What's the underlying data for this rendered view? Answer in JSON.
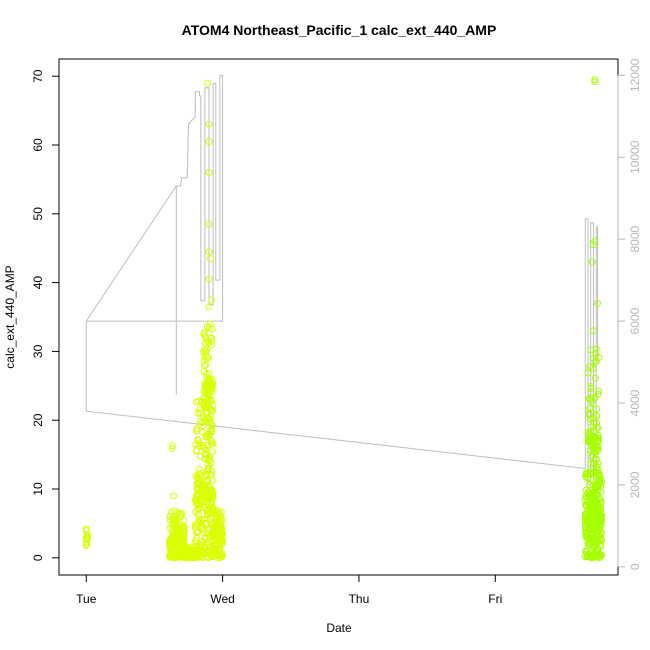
{
  "chart_data": {
    "type": "scatter",
    "title": "ATOM4 Northeast_Pacific_1 calc_ext_440_AMP",
    "xlabel": "Date",
    "ylabel": "calc_ext_440_AMP",
    "x_ticks": [
      "Tue",
      "Wed",
      "Thu",
      "Fri"
    ],
    "x_tick_pos": [
      0,
      1,
      2,
      3
    ],
    "xlim": [
      -0.2,
      3.9
    ],
    "ylim": [
      -2.5,
      72.5
    ],
    "y_ticks": [
      0,
      10,
      20,
      30,
      40,
      50,
      60,
      70
    ],
    "y2lim": [
      -200,
      12400
    ],
    "y2_ticks": [
      0,
      2000,
      4000,
      6000,
      8000,
      10000,
      12000
    ],
    "grid": false,
    "colors": {
      "points": "#d9ff00",
      "points_late": "#a6ff00",
      "line": "#bebebe"
    },
    "series": [
      {
        "role": "points",
        "clusters": [
          {
            "x_range": [
              0.0,
              0.01
            ],
            "n": 10,
            "y_mid": 3.0,
            "y_spread": 1.3
          },
          {
            "x_range": [
              0.61,
              0.72
            ],
            "n": 160,
            "y_mid": 2.5,
            "y_spread": 4.5
          },
          {
            "x_range": [
              0.7,
              0.8
            ],
            "n": 90,
            "y_mid": 0.8,
            "y_spread": 1.0
          },
          {
            "x_range": [
              0.8,
              0.93
            ],
            "n": 260,
            "y_mid": 9.0,
            "y_spread": 14.0
          },
          {
            "x_range": [
              0.86,
              0.93
            ],
            "n": 90,
            "y_mid": 25.0,
            "y_spread": 9.0
          },
          {
            "x_range": [
              0.93,
              1.0
            ],
            "n": 120,
            "y_mid": 3.5,
            "y_spread": 3.5
          },
          {
            "x_range": [
              3.66,
              3.78
            ],
            "n": 300,
            "y_mid": 5.5,
            "y_spread": 7.0
          },
          {
            "x_range": [
              3.68,
              3.76
            ],
            "n": 110,
            "y_mid": 17.0,
            "y_spread": 14.0
          }
        ],
        "highlights": [
          [
            0.0,
            4.2
          ],
          [
            0.0,
            1.8
          ],
          [
            0.63,
            16.3
          ],
          [
            0.63,
            15.9
          ],
          [
            0.64,
            9.0
          ],
          [
            0.89,
            69.0
          ],
          [
            0.9,
            63.0
          ],
          [
            0.9,
            60.5
          ],
          [
            0.9,
            56.0
          ],
          [
            0.9,
            48.5
          ],
          [
            0.9,
            44.5
          ],
          [
            0.91,
            43.5
          ],
          [
            0.9,
            40.5
          ],
          [
            0.92,
            37.5
          ],
          [
            0.9,
            36.5
          ],
          [
            0.91,
            34.0
          ],
          [
            0.92,
            31.5
          ],
          [
            3.73,
            69.5
          ],
          [
            3.73,
            69.2
          ],
          [
            3.73,
            46.0
          ],
          [
            3.72,
            45.5
          ],
          [
            3.71,
            43.0
          ],
          [
            3.75,
            37.0
          ],
          [
            3.72,
            33.0
          ]
        ]
      },
      {
        "role": "line",
        "axis": "right",
        "points": [
          [
            0.0,
            5200
          ],
          [
            0.0,
            6000
          ],
          [
            1.0,
            6000
          ],
          [
            1.0,
            12000
          ],
          [
            0.98,
            12000
          ],
          [
            0.98,
            7000
          ],
          [
            0.95,
            7000
          ],
          [
            0.95,
            11800
          ],
          [
            0.93,
            11800
          ],
          [
            0.93,
            6400
          ],
          [
            0.9,
            6400
          ],
          [
            0.9,
            11700
          ],
          [
            0.87,
            11700
          ],
          [
            0.87,
            6500
          ],
          [
            0.84,
            6500
          ],
          [
            0.84,
            11500
          ],
          [
            0.83,
            11500
          ],
          [
            0.83,
            11600
          ],
          [
            0.8,
            11600
          ],
          [
            0.8,
            11000
          ],
          [
            0.75,
            10800
          ],
          [
            0.74,
            9500
          ],
          [
            0.7,
            9500
          ],
          [
            0.69,
            9300
          ],
          [
            0.66,
            9300
          ],
          [
            0.66,
            4200
          ],
          [
            0.66,
            9300
          ],
          [
            0.0,
            6000
          ],
          [
            0.0,
            3800
          ],
          [
            3.66,
            2400
          ],
          [
            3.66,
            8500
          ],
          [
            3.68,
            8500
          ],
          [
            3.68,
            2000
          ],
          [
            3.7,
            2000
          ],
          [
            3.7,
            8400
          ],
          [
            3.72,
            8400
          ],
          [
            3.72,
            1200
          ],
          [
            3.74,
            1200
          ],
          [
            3.74,
            8300
          ],
          [
            3.75,
            8300
          ],
          [
            3.75,
            5000
          ]
        ]
      }
    ]
  }
}
